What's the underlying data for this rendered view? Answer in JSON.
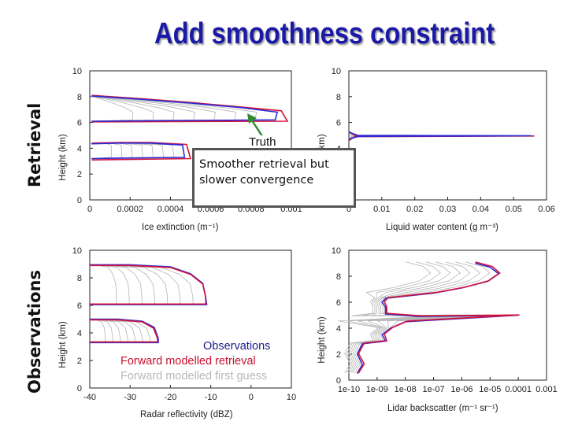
{
  "title": "Add smoothness constraint",
  "side_labels": {
    "retrieval": "Retrieval",
    "observations": "Observations"
  },
  "annotation": {
    "truth": "Truth",
    "callout_line1": "Smoother retrieval but",
    "callout_line2": "slower convergence"
  },
  "legend": {
    "observations": "Observations",
    "forward_retrieval": "Forward modelled retrieval",
    "forward_first_guess": "Forward modelled first guess"
  },
  "colors": {
    "title": "#1a1aa6",
    "truth": "#d4143a",
    "retrieval": "#2a2ad6",
    "iterations": "#b4b4b4",
    "arrow": "#2e8b2e"
  },
  "chart_data": [
    {
      "type": "line",
      "xlabel": "Ice extinction (m⁻¹)",
      "ylabel": "Height (km)",
      "xlim": [
        0,
        0.001
      ],
      "ylim": [
        0,
        10
      ],
      "xticks": [
        "0",
        "0.0002",
        "0.0004",
        "0.0006",
        "0.0008",
        "0.001"
      ],
      "yticks": [
        "0",
        "2",
        "4",
        "6",
        "8",
        "10"
      ],
      "series": [
        {
          "name": "Truth",
          "points": [
            [
              1e-05,
              8.1
            ],
            [
              0.00025,
              7.85
            ],
            [
              0.0005,
              7.55
            ],
            [
              0.00075,
              7.2
            ],
            [
              0.00095,
              6.9
            ],
            [
              0.00098,
              6.1
            ],
            [
              1e-05,
              6.05
            ]
          ]
        },
        {
          "name": "Retrieval",
          "points": [
            [
              1e-05,
              8.05
            ],
            [
              0.00025,
              7.8
            ],
            [
              0.0005,
              7.5
            ],
            [
              0.00075,
              7.15
            ],
            [
              0.00093,
              6.8
            ],
            [
              0.00092,
              6.2
            ],
            [
              1e-05,
              6.1
            ]
          ]
        },
        {
          "name": "Truth",
          "points": [
            [
              1e-05,
              4.4
            ],
            [
              0.00015,
              4.45
            ],
            [
              0.0003,
              4.45
            ],
            [
              0.00048,
              4.3
            ],
            [
              0.0005,
              3.2
            ],
            [
              1e-05,
              3.1
            ]
          ]
        },
        {
          "name": "Retrieval",
          "points": [
            [
              1e-05,
              4.35
            ],
            [
              0.00015,
              4.4
            ],
            [
              0.0003,
              4.4
            ],
            [
              0.00046,
              4.25
            ],
            [
              0.00047,
              3.3
            ],
            [
              1e-05,
              3.2
            ]
          ]
        }
      ]
    },
    {
      "type": "line",
      "xlabel": "Liquid water content (g m⁻³)",
      "ylabel": "Height (km)",
      "xlim": [
        0,
        0.065
      ],
      "ylim": [
        0,
        10
      ],
      "xticks": [
        "0",
        "0.01",
        "0.02",
        "0.03",
        "0.04",
        "0.05",
        "0.06"
      ],
      "yticks": [
        "0",
        "2",
        "4",
        "6",
        "8",
        "10"
      ],
      "series": [
        {
          "name": "Truth",
          "points": [
            [
              0.0,
              5.3
            ],
            [
              0.002,
              5.0
            ],
            [
              0.061,
              4.95
            ],
            [
              0.002,
              4.9
            ],
            [
              0.0,
              4.6
            ]
          ]
        },
        {
          "name": "Retrieval",
          "points": [
            [
              0.0,
              5.25
            ],
            [
              0.003,
              5.0
            ],
            [
              0.06,
              4.97
            ],
            [
              0.003,
              4.92
            ],
            [
              0.0,
              4.7
            ]
          ]
        }
      ]
    },
    {
      "type": "line",
      "xlabel": "Radar reflectivity (dBZ)",
      "ylabel": "Height (km)",
      "xlim": [
        -40,
        10
      ],
      "ylim": [
        0,
        10
      ],
      "xticks": [
        "-40",
        "-30",
        "-20",
        "-10",
        "0",
        "10"
      ],
      "yticks": [
        "0",
        "2",
        "4",
        "6",
        "8",
        "10"
      ],
      "series": [
        {
          "name": "Observations",
          "points": [
            [
              -40,
              8.95
            ],
            [
              -30,
              8.95
            ],
            [
              -20,
              8.8
            ],
            [
              -15,
              8.3
            ],
            [
              -12,
              7.6
            ],
            [
              -11.3,
              6.7
            ],
            [
              -11,
              6.05
            ],
            [
              -40,
              6.05
            ]
          ]
        },
        {
          "name": "Forward modelled retrieval",
          "points": [
            [
              -40,
              8.9
            ],
            [
              -30,
              8.9
            ],
            [
              -20,
              8.75
            ],
            [
              -15,
              8.25
            ],
            [
              -12,
              7.55
            ],
            [
              -11.3,
              6.65
            ],
            [
              -11.2,
              6.1
            ],
            [
              -40,
              6.1
            ]
          ]
        },
        {
          "name": "Observations",
          "points": [
            [
              -40,
              5.0
            ],
            [
              -33,
              5.0
            ],
            [
              -27,
              4.85
            ],
            [
              -24,
              4.4
            ],
            [
              -23,
              3.6
            ],
            [
              -23,
              3.3
            ],
            [
              -40,
              3.3
            ]
          ]
        },
        {
          "name": "Forward modelled retrieval",
          "points": [
            [
              -40,
              4.95
            ],
            [
              -33,
              4.95
            ],
            [
              -27,
              4.8
            ],
            [
              -24.2,
              4.35
            ],
            [
              -23.2,
              3.6
            ],
            [
              -23.2,
              3.35
            ],
            [
              -40,
              3.35
            ]
          ]
        }
      ]
    },
    {
      "type": "line",
      "xlabel": "Lidar backscatter (m⁻¹ sr⁻¹)",
      "ylabel": "Height (km)",
      "xscale": "log",
      "xlim": [
        1e-10,
        0.001
      ],
      "ylim": [
        0,
        10
      ],
      "xticks": [
        "1e-10",
        "1e-09",
        "1e-08",
        "1e-07",
        "1e-06",
        "1e-05",
        "0.0001",
        "0.001"
      ],
      "yticks": [
        "0",
        "2",
        "4",
        "6",
        "8",
        "10"
      ],
      "series": [
        {
          "name": "Observations",
          "points": [
            [
              3e-06,
              9.0
            ],
            [
              1e-05,
              8.7
            ],
            [
              2e-05,
              8.2
            ],
            [
              8e-06,
              7.6
            ],
            [
              1e-06,
              7.1
            ],
            [
              1e-07,
              6.7
            ],
            [
              2e-09,
              6.3
            ],
            [
              1.5e-09,
              6.0
            ],
            [
              2e-09,
              5.6
            ],
            [
              2e-09,
              5.1
            ],
            [
              3e-08,
              4.9
            ],
            [
              0.0001,
              5.0
            ],
            [
              1e-08,
              4.5
            ],
            [
              3e-09,
              4.0
            ],
            [
              1.5e-09,
              3.5
            ],
            [
              2e-09,
              3.0
            ],
            [
              3e-10,
              2.8
            ],
            [
              2e-10,
              2.0
            ],
            [
              3e-10,
              1.2
            ],
            [
              2e-10,
              0.5
            ]
          ]
        },
        {
          "name": "Forward modelled retrieval",
          "points": [
            [
              3e-06,
              9.1
            ],
            [
              1.2e-05,
              8.75
            ],
            [
              2.2e-05,
              8.25
            ],
            [
              9e-06,
              7.65
            ],
            [
              1.2e-06,
              7.15
            ],
            [
              1.2e-07,
              6.75
            ],
            [
              2.5e-09,
              6.35
            ],
            [
              1.8e-09,
              6.05
            ],
            [
              2.2e-09,
              5.65
            ],
            [
              2.2e-09,
              5.15
            ],
            [
              3.5e-08,
              4.95
            ],
            [
              0.00011,
              5.02
            ],
            [
              1.2e-08,
              4.55
            ],
            [
              3.5e-09,
              4.05
            ],
            [
              1.8e-09,
              3.55
            ],
            [
              2.2e-09,
              3.05
            ],
            [
              3.5e-10,
              2.85
            ],
            [
              2.2e-10,
              2.05
            ],
            [
              3.5e-10,
              1.25
            ],
            [
              2.2e-10,
              0.55
            ]
          ]
        }
      ]
    }
  ]
}
